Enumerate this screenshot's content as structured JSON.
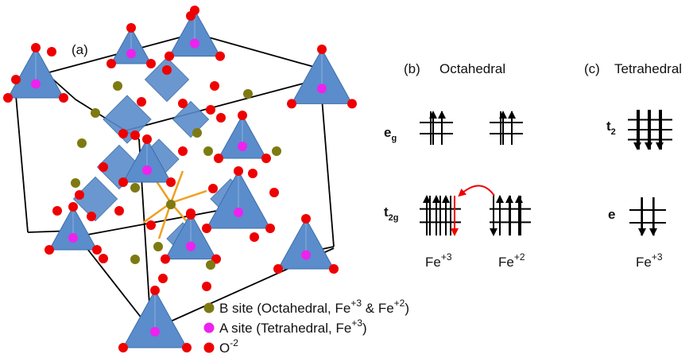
{
  "panel_a": {
    "label": "(a)",
    "legend": [
      {
        "parts": [
          "B site (Octahedral, Fe",
          "+3",
          " & Fe",
          "+2",
          ")"
        ]
      },
      {
        "parts": [
          "A site (Tetrahedral, Fe",
          "+3",
          ")"
        ]
      },
      {
        "parts": [
          "O",
          "-2"
        ]
      }
    ]
  },
  "panel_b": {
    "label": "(b)",
    "title": "Octahedral",
    "levels": [
      {
        "base": "e",
        "sub": "g"
      },
      {
        "base": "t",
        "sub": "2g"
      }
    ],
    "ions": [
      {
        "base": "Fe",
        "sup": "+3"
      },
      {
        "base": "Fe",
        "sup": "+2"
      }
    ]
  },
  "panel_c": {
    "label": "(c)",
    "title": "Tetrahedral",
    "levels": [
      {
        "base": "t",
        "sub": "2"
      },
      {
        "base": "e"
      }
    ],
    "ions": [
      {
        "base": "Fe",
        "sup": "+3"
      }
    ]
  }
}
